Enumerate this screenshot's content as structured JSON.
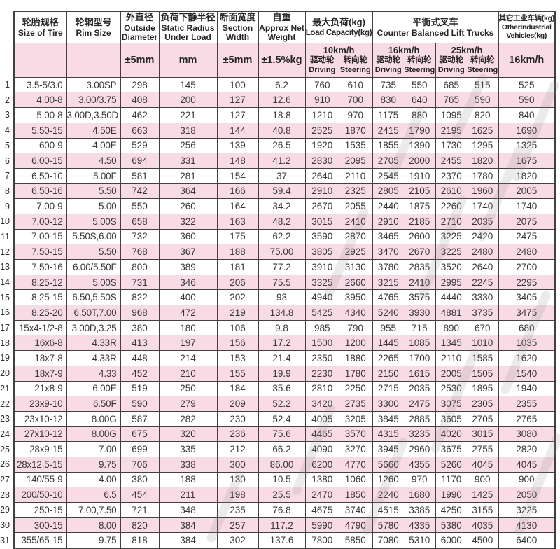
{
  "colors": {
    "row_pink": "#f8dbe4",
    "grid_border": "#414141",
    "body_text": "#383838",
    "header_text": "#262626",
    "watermark_gray": "#8f8f8f"
  },
  "table": {
    "col_headers": [
      {
        "zh": "轮胎规格",
        "en": "Size of Tire",
        "unit": ""
      },
      {
        "zh": "轮辋型号",
        "en": "Rim Size",
        "unit": ""
      },
      {
        "zh": "外直径",
        "en": "Outside Diameter",
        "unit": "±5mm"
      },
      {
        "zh": "负荷下静半径",
        "en": "Static Radius Under Load",
        "unit": "mm"
      },
      {
        "zh": "断面宽度",
        "en": "Section Width",
        "unit": "±5mm"
      },
      {
        "zh": "自重",
        "en": "Approx Net Weight",
        "unit": "±1.5%kg"
      }
    ],
    "load_capacity": {
      "zh": "最大负荷(kg)",
      "en": "Load Capacity(kg)"
    },
    "counter_balanced": {
      "zh": "平衡式叉车",
      "en": "Counter Balanced Lift Trucks"
    },
    "other_industrial": {
      "zh": "其它工业车辆(kg)",
      "en": "OtherIndustrial Vehicles(kg)",
      "speed": "16km/h"
    },
    "speed_groups": [
      {
        "speed": "10km/h",
        "drive_zh": "驱动轮",
        "steer_zh": "转向轮",
        "drive_en": "Driving",
        "steer_en": "Steering"
      },
      {
        "speed": "16km/h",
        "drive_zh": "驱动轮",
        "steer_zh": "转向轮",
        "drive_en": "Driving",
        "steer_en": "Steering"
      },
      {
        "speed": "25km/h",
        "drive_zh": "驱动轮",
        "steer_zh": "转向轮",
        "drive_en": "Driving",
        "steer_en": "Steering"
      }
    ],
    "rows": [
      {
        "no": "1",
        "size": "3.5-5/3.0",
        "rim": "3.00SP",
        "od": "298",
        "sr": "145",
        "sw": "100",
        "wt": "6.2",
        "d10": "760",
        "s10": "610",
        "d16": "735",
        "s16": "550",
        "d25": "685",
        "s25": "515",
        "other": "525"
      },
      {
        "no": "2",
        "size": "4.00-8",
        "rim": "3.00/3.75",
        "od": "408",
        "sr": "200",
        "sw": "127",
        "wt": "12.6",
        "d10": "910",
        "s10": "700",
        "d16": "830",
        "s16": "640",
        "d25": "765",
        "s25": "590",
        "other": "590"
      },
      {
        "no": "3",
        "size": "5.00-8",
        "rim": "3.00D,3.50D",
        "od": "462",
        "sr": "221",
        "sw": "127",
        "wt": "18.8",
        "d10": "1210",
        "s10": "970",
        "d16": "1175",
        "s16": "880",
        "d25": "1095",
        "s25": "820",
        "other": "840"
      },
      {
        "no": "4",
        "size": "5.50-15",
        "rim": "4.50E",
        "od": "663",
        "sr": "318",
        "sw": "144",
        "wt": "40.8",
        "d10": "2525",
        "s10": "1870",
        "d16": "2415",
        "s16": "1790",
        "d25": "2195",
        "s25": "1625",
        "other": "1690"
      },
      {
        "no": "5",
        "size": "600-9",
        "rim": "4.00E",
        "od": "529",
        "sr": "256",
        "sw": "139",
        "wt": "26.5",
        "d10": "1920",
        "s10": "1535",
        "d16": "1855",
        "s16": "1390",
        "d25": "1730",
        "s25": "1295",
        "other": "1325"
      },
      {
        "no": "6",
        "size": "6.00-15",
        "rim": "4.50",
        "od": "694",
        "sr": "331",
        "sw": "148",
        "wt": "41.2",
        "d10": "2830",
        "s10": "2095",
        "d16": "2705",
        "s16": "2000",
        "d25": "2455",
        "s25": "1820",
        "other": "1675"
      },
      {
        "no": "7",
        "size": "6.50-10",
        "rim": "5.00F",
        "od": "581",
        "sr": "281",
        "sw": "154",
        "wt": "37",
        "d10": "2640",
        "s10": "2110",
        "d16": "2545",
        "s16": "1910",
        "d25": "2370",
        "s25": "1780",
        "other": "1820"
      },
      {
        "no": "8",
        "size": "6.50-16",
        "rim": "5.50",
        "od": "742",
        "sr": "364",
        "sw": "166",
        "wt": "59.4",
        "d10": "2910",
        "s10": "2325",
        "d16": "2805",
        "s16": "2105",
        "d25": "2610",
        "s25": "1960",
        "other": "2005"
      },
      {
        "no": "9",
        "size": "7.00-9",
        "rim": "5.00",
        "od": "550",
        "sr": "260",
        "sw": "164",
        "wt": "34.2",
        "d10": "2670",
        "s10": "2055",
        "d16": "2440",
        "s16": "1875",
        "d25": "2260",
        "s25": "1740",
        "other": "1740"
      },
      {
        "no": "10",
        "size": "7.00-12",
        "rim": "5.00S",
        "od": "658",
        "sr": "322",
        "sw": "163",
        "wt": "48.2",
        "d10": "3015",
        "s10": "2410",
        "d16": "2910",
        "s16": "2185",
        "d25": "2710",
        "s25": "2035",
        "other": "2075"
      },
      {
        "no": "11",
        "size": "7.00-15",
        "rim": "5.50S,6.00",
        "od": "732",
        "sr": "360",
        "sw": "175",
        "wt": "62.2",
        "d10": "3590",
        "s10": "2870",
        "d16": "3465",
        "s16": "2600",
        "d25": "3225",
        "s25": "2420",
        "other": "2475"
      },
      {
        "no": "12",
        "size": "7.50-15",
        "rim": "5.50",
        "od": "768",
        "sr": "367",
        "sw": "188",
        "wt": "75.00",
        "d10": "3805",
        "s10": "2925",
        "d16": "3470",
        "s16": "2670",
        "d25": "3225",
        "s25": "2480",
        "other": "2480"
      },
      {
        "no": "13",
        "size": "7.50-16",
        "rim": "6.00/5.50F",
        "od": "800",
        "sr": "389",
        "sw": "181",
        "wt": "77.2",
        "d10": "3910",
        "s10": "3130",
        "d16": "3780",
        "s16": "2835",
        "d25": "3520",
        "s25": "2640",
        "other": "2700"
      },
      {
        "no": "14",
        "size": "8.25-12",
        "rim": "5.00S",
        "od": "731",
        "sr": "346",
        "sw": "206",
        "wt": "75.5",
        "d10": "3325",
        "s10": "2660",
        "d16": "3215",
        "s16": "2410",
        "d25": "2995",
        "s25": "2245",
        "other": "2295"
      },
      {
        "no": "15",
        "size": "8.25-15",
        "rim": "6.50,5.50S",
        "od": "822",
        "sr": "400",
        "sw": "202",
        "wt": "93",
        "d10": "4940",
        "s10": "3950",
        "d16": "4765",
        "s16": "3575",
        "d25": "4440",
        "s25": "3330",
        "other": "3405"
      },
      {
        "no": "16",
        "size": "8.25-20",
        "rim": "6.50T,7.00",
        "od": "968",
        "sr": "472",
        "sw": "219",
        "wt": "134.8",
        "d10": "5425",
        "s10": "4340",
        "d16": "5240",
        "s16": "3930",
        "d25": "4881",
        "s25": "3735",
        "other": "3475"
      },
      {
        "no": "17",
        "size": "15x4-1/2-8",
        "rim": "3.00D,3.25",
        "od": "380",
        "sr": "180",
        "sw": "106",
        "wt": "9.8",
        "d10": "985",
        "s10": "790",
        "d16": "955",
        "s16": "715",
        "d25": "890",
        "s25": "670",
        "other": "680"
      },
      {
        "no": "18",
        "size": "16x6-8",
        "rim": "4.33R",
        "od": "413",
        "sr": "197",
        "sw": "156",
        "wt": "17.2",
        "d10": "1500",
        "s10": "1200",
        "d16": "1445",
        "s16": "1085",
        "d25": "1345",
        "s25": "1010",
        "other": "1035"
      },
      {
        "no": "19",
        "size": "18x7-8",
        "rim": "4.33R",
        "od": "448",
        "sr": "214",
        "sw": "153",
        "wt": "21.4",
        "d10": "2350",
        "s10": "1880",
        "d16": "2265",
        "s16": "1700",
        "d25": "2110",
        "s25": "1585",
        "other": "1620"
      },
      {
        "no": "20",
        "size": "18x7-9",
        "rim": "4.33",
        "od": "452",
        "sr": "210",
        "sw": "155",
        "wt": "19.9",
        "d10": "2230",
        "s10": "1780",
        "d16": "2150",
        "s16": "1615",
        "d25": "2005",
        "s25": "1505",
        "other": "1540"
      },
      {
        "no": "21",
        "size": "21x8-9",
        "rim": "6.00E",
        "od": "519",
        "sr": "250",
        "sw": "184",
        "wt": "35.6",
        "d10": "2810",
        "s10": "2250",
        "d16": "2715",
        "s16": "2035",
        "d25": "2530",
        "s25": "1895",
        "other": "1940"
      },
      {
        "no": "22",
        "size": "23x9-10",
        "rim": "6.50F",
        "od": "590",
        "sr": "279",
        "sw": "209",
        "wt": "52.2",
        "d10": "3420",
        "s10": "2735",
        "d16": "3300",
        "s16": "2475",
        "d25": "3075",
        "s25": "2305",
        "other": "2355"
      },
      {
        "no": "23",
        "size": "23x10-12",
        "rim": "8.00G",
        "od": "587",
        "sr": "282",
        "sw": "230",
        "wt": "52.4",
        "d10": "4005",
        "s10": "3205",
        "d16": "3845",
        "s16": "2885",
        "d25": "3605",
        "s25": "2705",
        "other": "2765"
      },
      {
        "no": "24",
        "size": "27x10-12",
        "rim": "8.00G",
        "od": "675",
        "sr": "320",
        "sw": "236",
        "wt": "75.6",
        "d10": "4465",
        "s10": "3570",
        "d16": "4315",
        "s16": "3235",
        "d25": "4020",
        "s25": "3015",
        "other": "3080"
      },
      {
        "no": "25",
        "size": "28x9-15",
        "rim": "7.00",
        "od": "699",
        "sr": "335",
        "sw": "212",
        "wt": "66.2",
        "d10": "4090",
        "s10": "3270",
        "d16": "3945",
        "s16": "2960",
        "d25": "3675",
        "s25": "2755",
        "other": "2820"
      },
      {
        "no": "26",
        "size": "28x12.5-15",
        "rim": "9.75",
        "od": "706",
        "sr": "338",
        "sw": "300",
        "wt": "86.00",
        "d10": "6200",
        "s10": "4770",
        "d16": "5660",
        "s16": "4355",
        "d25": "5260",
        "s25": "4045",
        "other": "4045"
      },
      {
        "no": "27",
        "size": "140/55-9",
        "rim": "4.00",
        "od": "380",
        "sr": "188",
        "sw": "130",
        "wt": "10.5",
        "d10": "1380",
        "s10": "1060",
        "d16": "1260",
        "s16": "970",
        "d25": "1170",
        "s25": "900",
        "other": "900"
      },
      {
        "no": "28",
        "size": "200/50-10",
        "rim": "6.5",
        "od": "454",
        "sr": "211",
        "sw": "198",
        "wt": "25.5",
        "d10": "2470",
        "s10": "1850",
        "d16": "2240",
        "s16": "1680",
        "d25": "1990",
        "s25": "1425",
        "other": "2050"
      },
      {
        "no": "29",
        "size": "250-15",
        "rim": "7.00,7.50",
        "od": "721",
        "sr": "348",
        "sw": "235",
        "wt": "76.8",
        "d10": "4675",
        "s10": "3740",
        "d16": "4515",
        "s16": "3385",
        "d25": "4250",
        "s25": "3155",
        "other": "3225"
      },
      {
        "no": "30",
        "size": "300-15",
        "rim": "8.00",
        "od": "820",
        "sr": "384",
        "sw": "257",
        "wt": "117.2",
        "d10": "5990",
        "s10": "4790",
        "d16": "5780",
        "s16": "4335",
        "d25": "5380",
        "s25": "4035",
        "other": "4130"
      },
      {
        "no": "31",
        "size": "355/65-15",
        "rim": "9.75",
        "od": "818",
        "sr": "384",
        "sw": "302",
        "wt": "137.6",
        "d10": "7800",
        "s10": "5850",
        "d16": "7080",
        "s16": "5310",
        "d25": "6000",
        "s25": "4500",
        "other": "6400"
      }
    ]
  }
}
